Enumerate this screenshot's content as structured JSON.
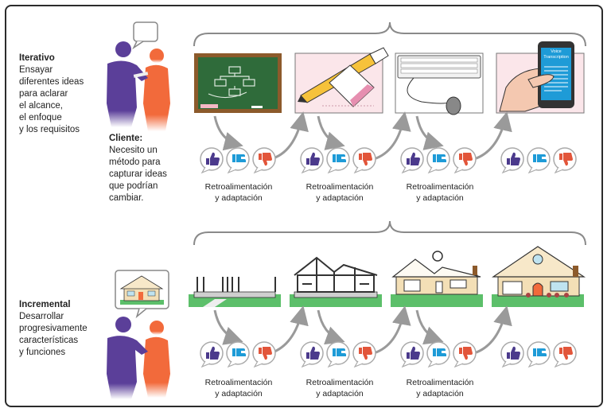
{
  "iterative": {
    "title": "Iterativo",
    "lines": [
      "Ensayar",
      "diferentes ideas",
      "para aclarar",
      "el alcance,",
      "el enfoque",
      "y los requisitos"
    ]
  },
  "client": {
    "title": "Cliente:",
    "lines": [
      "Necesito un",
      "método para",
      "capturar ideas",
      "que podrían",
      "cambiar."
    ]
  },
  "incremental": {
    "title": "Incremental",
    "lines": [
      "Desarrollar",
      "progresivamente",
      "características",
      "y funciones"
    ]
  },
  "feedback": {
    "line1": "Retroalimentación",
    "line2": "y adaptación"
  },
  "phone_screen": {
    "line1": "Voice",
    "line2": "Transcription"
  },
  "colors": {
    "person_purple": "#5b3f99",
    "person_orange": "#f26a3b",
    "chalkboard": "#2f6b3a",
    "like": "#4b3a8c",
    "cyan": "#1e9bd7",
    "dislike": "#e2553a",
    "roof": "#f3dfb6",
    "grass": "#5cbf6a"
  }
}
